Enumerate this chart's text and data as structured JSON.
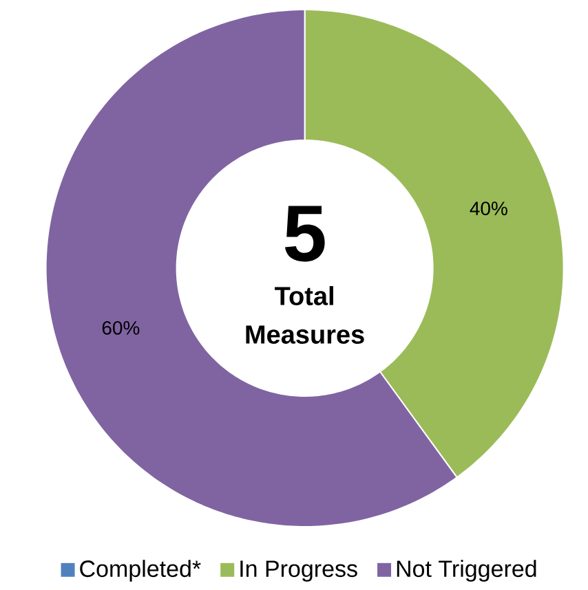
{
  "chart_data": {
    "type": "donut",
    "categories": [
      "Completed*",
      "In Progress",
      "Not Triggered"
    ],
    "values": [
      0,
      40,
      60
    ],
    "colors": [
      "#4f81bd",
      "#9bbb59",
      "#8064a2"
    ],
    "value_labels": [
      null,
      "40%",
      "60%"
    ],
    "annotations": [
      "5",
      "Total Measures"
    ],
    "legend": "bottom"
  }
}
